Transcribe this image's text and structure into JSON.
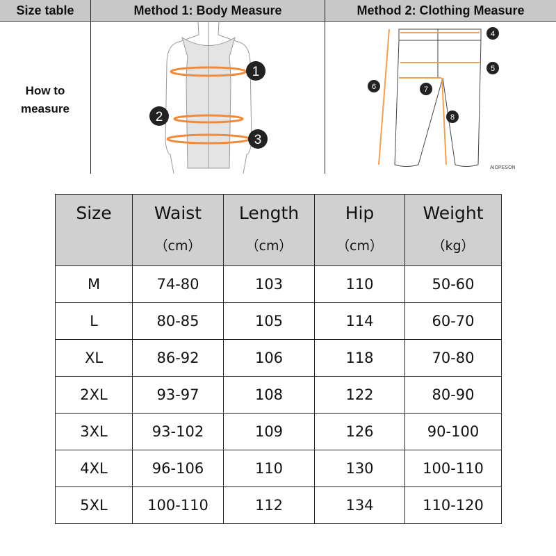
{
  "header": {
    "col1": "Size table",
    "col2": "Method 1: Body  Measure",
    "col3": "Method 2: Clothing Measure"
  },
  "how_to_measure": [
    "How to",
    "measure"
  ],
  "body_markers": [
    "1",
    "2",
    "3"
  ],
  "clothing_markers": [
    "4",
    "5",
    "6",
    "7",
    "8"
  ],
  "watermark": "AIOPESON",
  "accent_color": "#f0a050",
  "table": {
    "headers": [
      {
        "label": "Size",
        "unit": ""
      },
      {
        "label": "Waist",
        "unit": "（cm）"
      },
      {
        "label": "Length",
        "unit": "（cm）"
      },
      {
        "label": "Hip",
        "unit": "（cm）"
      },
      {
        "label": "Weight",
        "unit": "（kg）"
      }
    ],
    "rows": [
      [
        "M",
        "74-80",
        "103",
        "110",
        "50-60"
      ],
      [
        "L",
        "80-85",
        "105",
        "114",
        "60-70"
      ],
      [
        "XL",
        "86-92",
        "106",
        "118",
        "70-80"
      ],
      [
        "2XL",
        "93-97",
        "108",
        "122",
        "80-90"
      ],
      [
        "3XL",
        "93-102",
        "109",
        "126",
        "90-100"
      ],
      [
        "4XL",
        "96-106",
        "110",
        "130",
        "100-110"
      ],
      [
        "5XL",
        "100-110",
        "112",
        "134",
        "110-120"
      ]
    ]
  }
}
